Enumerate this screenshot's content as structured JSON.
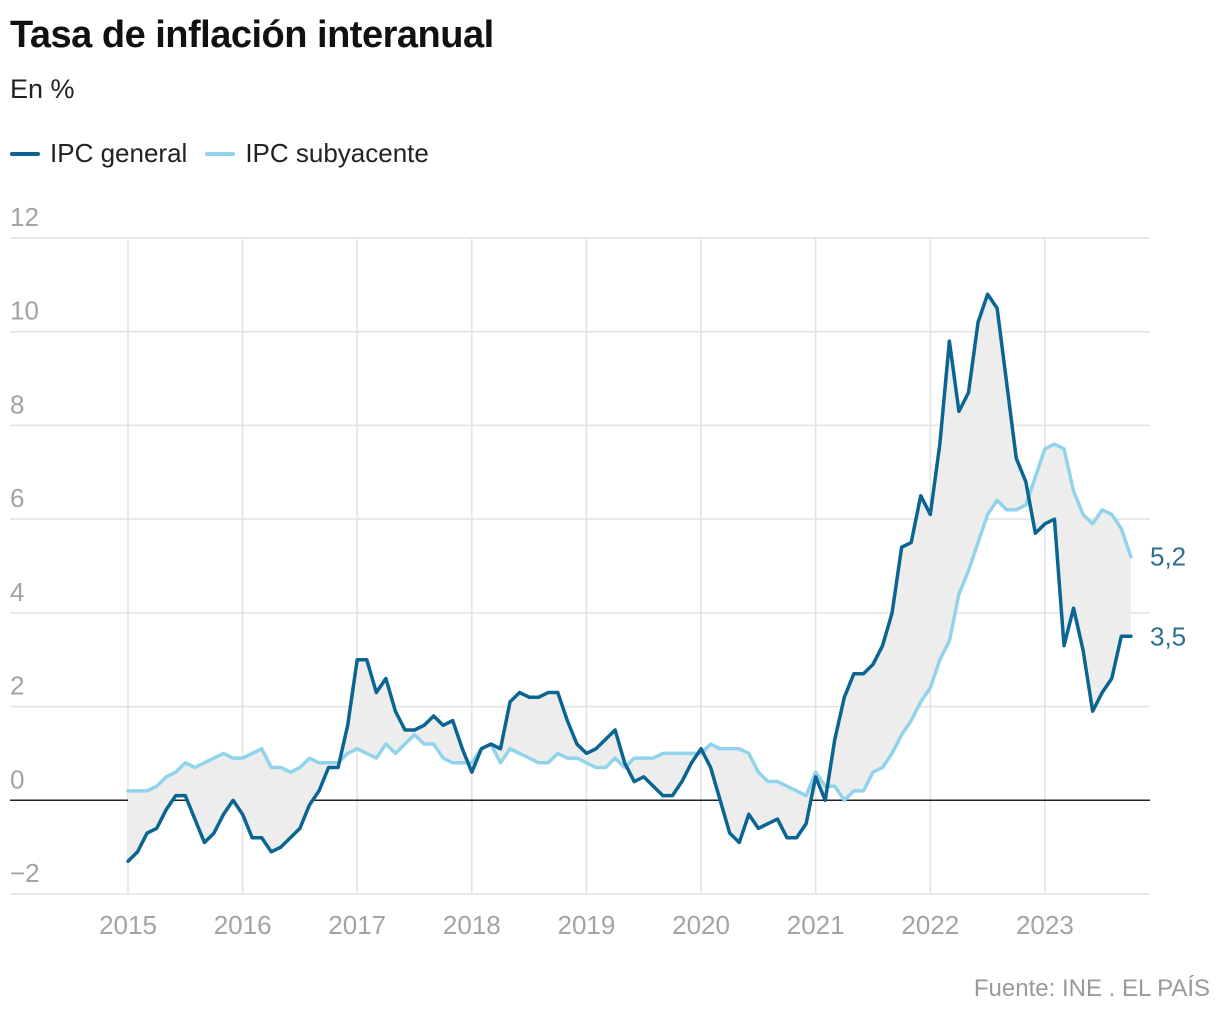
{
  "header": {
    "title": "Tasa de inflación interanual",
    "subtitle": "En %"
  },
  "legend": [
    {
      "label": "IPC general",
      "color": "#0a6592"
    },
    {
      "label": "IPC subyacente",
      "color": "#91d3ec"
    }
  ],
  "source": "Fuente: INE . EL PAÍS",
  "colors": {
    "general": "#0a6592",
    "core": "#91d3ec",
    "end_label": "#2f6f8f",
    "band": "#ededed",
    "grid": "#e2e2e2",
    "zero": "#222222"
  },
  "chart_data": {
    "type": "line",
    "title": "Tasa de inflación interanual",
    "subtitle": "En %",
    "xlabel": "",
    "ylabel": "En %",
    "x_start": "2015-01",
    "x_frequency": "monthly",
    "xlim": [
      2015.0,
      2023.917
    ],
    "ylim": [
      -2,
      12
    ],
    "y_ticks": [
      -2,
      0,
      2,
      4,
      6,
      8,
      10,
      12
    ],
    "y_tick_labels": [
      "−2",
      "0",
      "2",
      "4",
      "6",
      "8",
      "10",
      "12"
    ],
    "x_ticks": [
      2015,
      2016,
      2017,
      2018,
      2019,
      2020,
      2021,
      2022,
      2023
    ],
    "x_tick_labels": [
      "2015",
      "2016",
      "2017",
      "2018",
      "2019",
      "2020",
      "2021",
      "2022",
      "2023"
    ],
    "series": [
      {
        "name": "IPC general",
        "values": [
          -1.3,
          -1.1,
          -0.7,
          -0.6,
          -0.2,
          0.1,
          0.1,
          -0.4,
          -0.9,
          -0.7,
          -0.3,
          0.0,
          -0.3,
          -0.8,
          -0.8,
          -1.1,
          -1.0,
          -0.8,
          -0.6,
          -0.1,
          0.2,
          0.7,
          0.7,
          1.6,
          3.0,
          3.0,
          2.3,
          2.6,
          1.9,
          1.5,
          1.5,
          1.6,
          1.8,
          1.6,
          1.7,
          1.1,
          0.6,
          1.1,
          1.2,
          1.1,
          2.1,
          2.3,
          2.2,
          2.2,
          2.3,
          2.3,
          1.7,
          1.2,
          1.0,
          1.1,
          1.3,
          1.5,
          0.8,
          0.4,
          0.5,
          0.3,
          0.1,
          0.1,
          0.4,
          0.8,
          1.1,
          0.7,
          0.0,
          -0.7,
          -0.9,
          -0.3,
          -0.6,
          -0.5,
          -0.4,
          -0.8,
          -0.8,
          -0.5,
          0.5,
          0.0,
          1.3,
          2.2,
          2.7,
          2.7,
          2.9,
          3.3,
          4.0,
          5.4,
          5.5,
          6.5,
          6.1,
          7.6,
          9.8,
          8.3,
          8.7,
          10.2,
          10.8,
          10.5,
          8.9,
          7.3,
          6.8,
          5.7,
          5.9,
          6.0,
          3.3,
          4.1,
          3.2,
          1.9,
          2.3,
          2.6,
          3.5,
          3.5
        ],
        "end_label": "3,5"
      },
      {
        "name": "IPC subyacente",
        "values": [
          0.2,
          0.2,
          0.2,
          0.3,
          0.5,
          0.6,
          0.8,
          0.7,
          0.8,
          0.9,
          1.0,
          0.9,
          0.9,
          1.0,
          1.1,
          0.7,
          0.7,
          0.6,
          0.7,
          0.9,
          0.8,
          0.8,
          0.8,
          1.0,
          1.1,
          1.0,
          0.9,
          1.2,
          1.0,
          1.2,
          1.4,
          1.2,
          1.2,
          0.9,
          0.8,
          0.8,
          0.8,
          1.1,
          1.2,
          0.8,
          1.1,
          1.0,
          0.9,
          0.8,
          0.8,
          1.0,
          0.9,
          0.9,
          0.8,
          0.7,
          0.7,
          0.9,
          0.7,
          0.9,
          0.9,
          0.9,
          1.0,
          1.0,
          1.0,
          1.0,
          1.0,
          1.2,
          1.1,
          1.1,
          1.1,
          1.0,
          0.6,
          0.4,
          0.4,
          0.3,
          0.2,
          0.1,
          0.6,
          0.3,
          0.3,
          0.0,
          0.2,
          0.2,
          0.6,
          0.7,
          1.0,
          1.4,
          1.7,
          2.1,
          2.4,
          3.0,
          3.4,
          4.4,
          4.9,
          5.5,
          6.1,
          6.4,
          6.2,
          6.2,
          6.3,
          6.9,
          7.5,
          7.6,
          7.5,
          6.6,
          6.1,
          5.9,
          6.2,
          6.1,
          5.8,
          5.2
        ],
        "end_label": "5,2"
      }
    ],
    "shaded_between_series": true,
    "gridlines": true
  }
}
